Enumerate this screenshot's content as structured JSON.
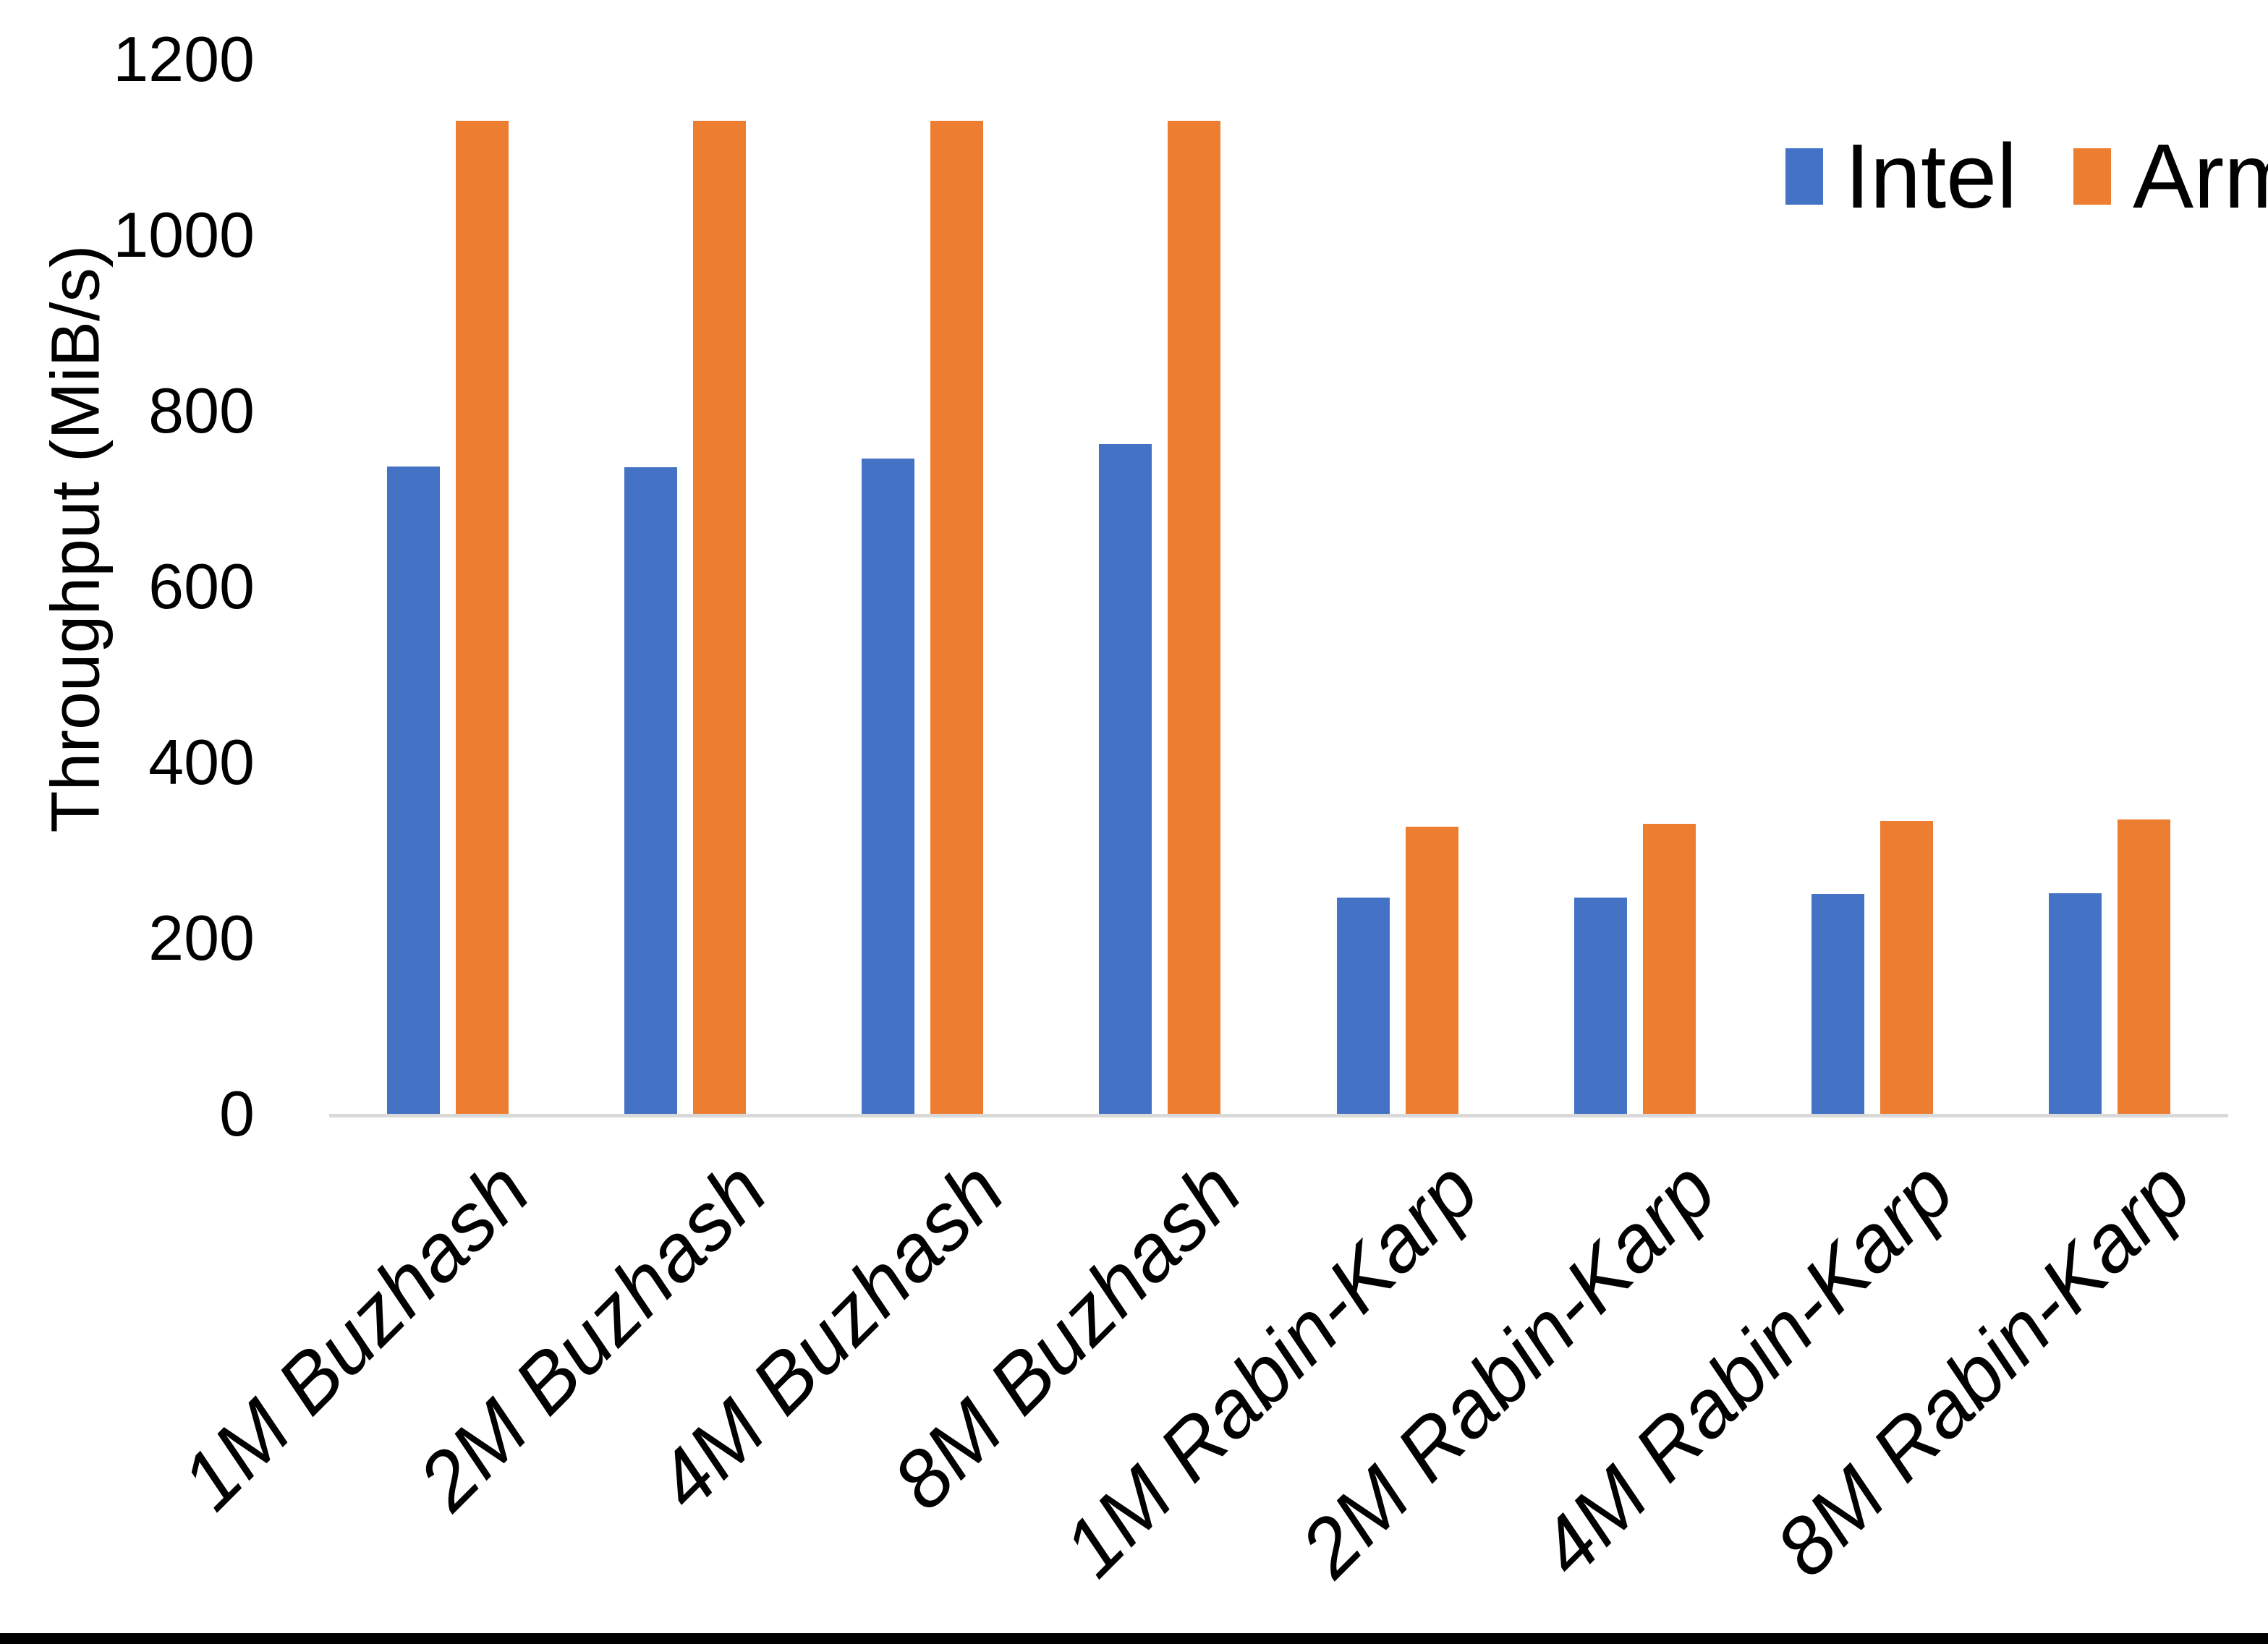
{
  "figure": {
    "kind": "clustered-bar-chart",
    "background": "#FFFFFF",
    "bottom_edge_bar_color": "#000000"
  },
  "chart_data": {
    "type": "bar",
    "title": "",
    "xlabel": "",
    "ylabel": "Throughput (MiB/s)",
    "ylim": [
      0,
      1200
    ],
    "yticks": [
      0,
      200,
      400,
      600,
      800,
      1000,
      1200
    ],
    "grid": false,
    "legend_position": "top-right",
    "axis_line_color": "#D9D9D9",
    "text_color": "#000000",
    "categories": [
      "1M Buzhash",
      "2M Buzhash",
      "4M Buzhash",
      "8M Buzhash",
      "1M Rabin-Karp",
      "2M Rabin-Karp",
      "4M Rabin-Karp",
      "8M Rabin-Karp"
    ],
    "series": [
      {
        "name": "Intel",
        "color": "#4472C4",
        "values": [
          737,
          736,
          746,
          762,
          246,
          246,
          250,
          251
        ]
      },
      {
        "name": "Arm",
        "color": "#ED7D31",
        "values": [
          1130,
          1130,
          1130,
          1130,
          327,
          330,
          333,
          335
        ]
      }
    ]
  }
}
